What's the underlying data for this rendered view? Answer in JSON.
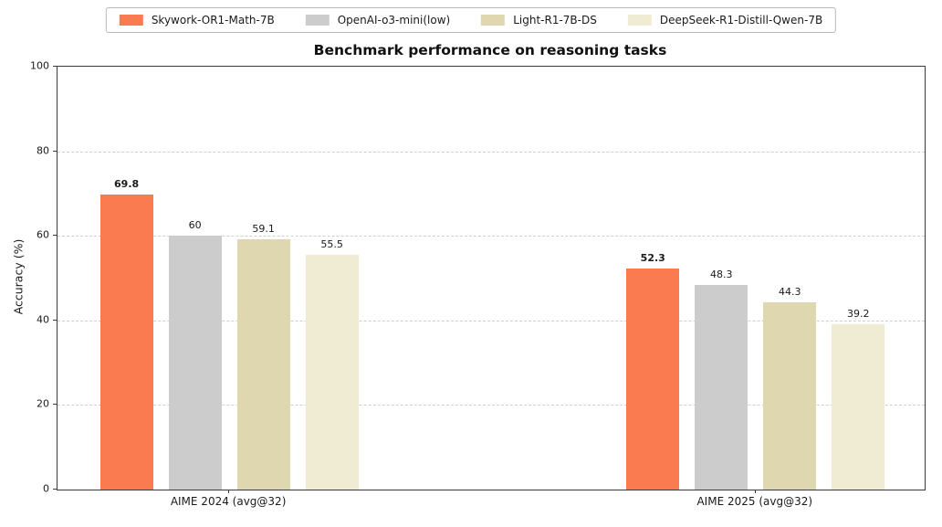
{
  "chart_data": {
    "type": "bar",
    "title": "Benchmark performance on reasoning tasks",
    "xlabel": "",
    "ylabel": "Accuracy (%)",
    "ylim": [
      0,
      100
    ],
    "yticks": [
      0,
      20,
      40,
      60,
      80,
      100
    ],
    "grid": "horizontal dashed gridlines at each y tick",
    "legend_position": "top center, outside plot, horizontal row with border",
    "categories": [
      "AIME 2024 (avg@32)",
      "AIME 2025 (avg@32)"
    ],
    "series": [
      {
        "name": "Skywork-OR1-Math-7B",
        "color": "#FA7B50",
        "values": [
          69.8,
          52.3
        ],
        "value_labels": [
          "69.8",
          "52.3"
        ],
        "value_labels_bold": true
      },
      {
        "name": "OpenAI-o3-mini(low)",
        "color": "#CCCCCC",
        "values": [
          60,
          48.3
        ],
        "value_labels": [
          "60",
          "48.3"
        ],
        "value_labels_bold": false
      },
      {
        "name": "Light-R1-7B-DS",
        "color": "#DED7B0",
        "values": [
          59.1,
          44.3
        ],
        "value_labels": [
          "59.1",
          "44.3"
        ],
        "value_labels_bold": false
      },
      {
        "name": "DeepSeek-R1-Distill-Qwen-7B",
        "color": "#F0EBD3",
        "values": [
          55.5,
          39.2
        ],
        "value_labels": [
          "55.5",
          "39.2"
        ],
        "value_labels_bold": false
      }
    ],
    "colors": {
      "spine": "#3a3a3a",
      "grid": "#cfcfcf",
      "text": "#1a1a1a",
      "background": "#ffffff"
    }
  }
}
